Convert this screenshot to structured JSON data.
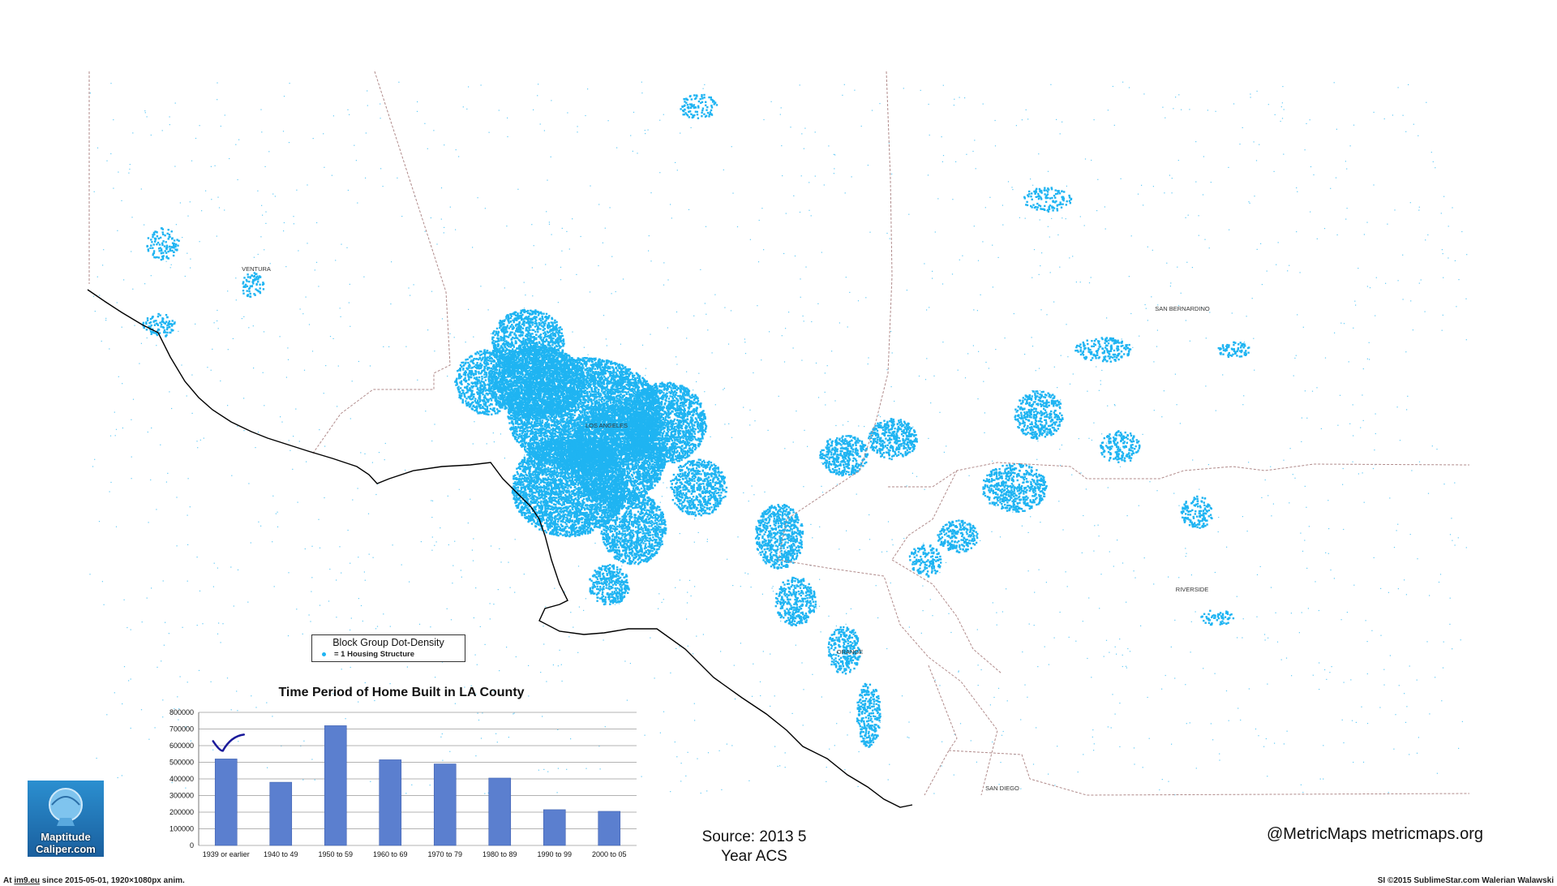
{
  "map": {
    "county_labels": [
      "VENTURA",
      "LOS ANGELES",
      "SAN BERNARDINO",
      "RIVERSIDE",
      "ORANGE",
      "SAN DIEGO"
    ],
    "dot_color": "#1fb4f2",
    "coast_color": "#000000",
    "border_color": "#b08a8a"
  },
  "legend": {
    "title": "Block Group Dot-Density",
    "item": "= 1 Housing Structure"
  },
  "chart_data": {
    "type": "bar",
    "title": "Time Period of Home Built in LA County",
    "categories": [
      "1939 or earlier",
      "1940 to 49",
      "1950 to 59",
      "1960 to 69",
      "1970 to 79",
      "1980 to 89",
      "1990 to 99",
      "2000 to 05"
    ],
    "values": [
      520000,
      380000,
      720000,
      515000,
      490000,
      405000,
      215000,
      205000
    ],
    "yticks": [
      "0",
      "100000",
      "200000",
      "300000",
      "400000",
      "500000",
      "600000",
      "700000",
      "800000"
    ],
    "ylim": [
      0,
      800000
    ],
    "grid": true,
    "bar_color": "#5b7fcf"
  },
  "source": {
    "line1": "Source:  2013 5",
    "line2": "Year ACS"
  },
  "credit": "@MetricMaps metricmaps.org",
  "logo": {
    "line1": "Maptitude",
    "line2": "Caliper.com"
  },
  "footer": {
    "left_prefix": "At ",
    "left_site": "im9.eu",
    "left_rest": " since 2015-05-01, 1920×1080px anim.",
    "right": "SI ©2015 SublimeStar.com Walerian Walawski"
  }
}
